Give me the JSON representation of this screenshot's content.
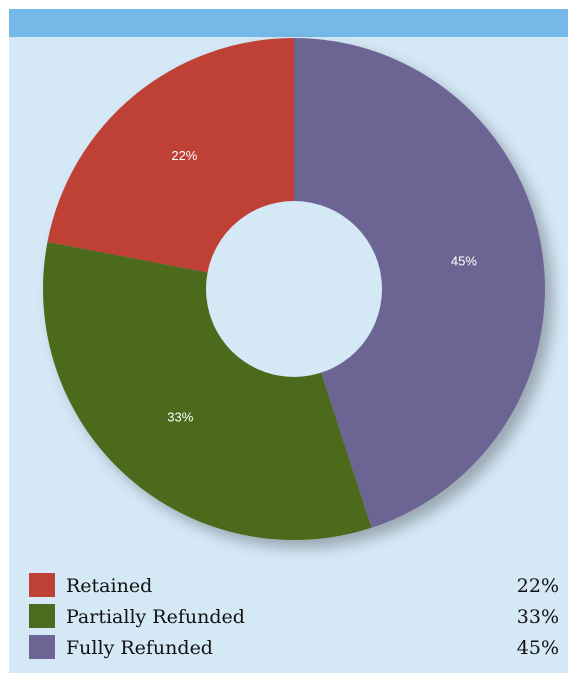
{
  "chart_data": {
    "type": "pie",
    "donut": true,
    "categories": [
      "Retained",
      "Partially Refunded",
      "Fully Refunded"
    ],
    "values": [
      22,
      33,
      45
    ],
    "labels": [
      "22%",
      "33%",
      "45%"
    ],
    "colors": [
      "#bf4136",
      "#4b6b1f",
      "#6c6593"
    ],
    "legend": "bottom",
    "start": "12 o'clock",
    "direction": "counterclockwise"
  },
  "colors": {
    "background": "#d4e8f6",
    "header_bar": "#74b9e7",
    "hole": "#d4e8f6"
  }
}
